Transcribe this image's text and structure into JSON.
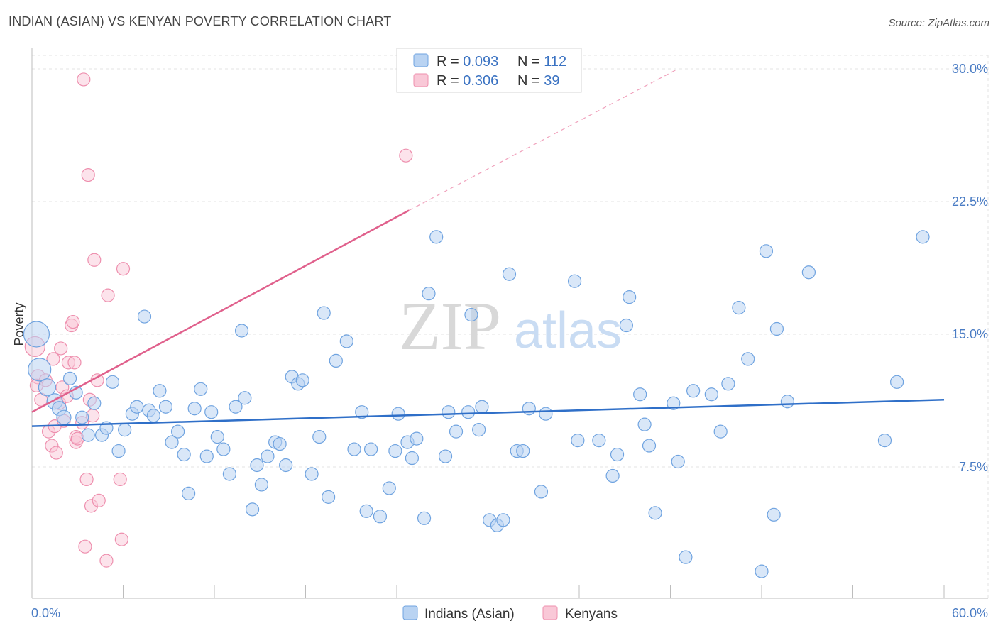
{
  "title": "INDIAN (ASIAN) VS KENYAN POVERTY CORRELATION CHART",
  "source": "Source: ZipAtlas.com",
  "watermark": {
    "zip": "ZIP",
    "atlas": "atlas"
  },
  "legend": {
    "rows": [
      {
        "r_label": "R = ",
        "r_value": "0.093",
        "n_label": "N = ",
        "n_value": "112",
        "color": "#9ec3ee"
      },
      {
        "r_label": "R = ",
        "r_value": "0.306",
        "n_label": "N = ",
        "n_value": "39",
        "color": "#f6b6c9"
      }
    ]
  },
  "chart_data": {
    "type": "scatter",
    "xlabel": "",
    "ylabel": "Poverty",
    "xlim": [
      0,
      60
    ],
    "ylim": [
      0,
      30
    ],
    "x_tick_labels": [
      "0.0%",
      "60.0%"
    ],
    "y_ticks": [
      7.5,
      15,
      22.5,
      30
    ],
    "y_tick_labels": [
      "7.5%",
      "15.0%",
      "22.5%",
      "30.0%"
    ],
    "grid": true,
    "legend_position": "bottom-center",
    "series": [
      {
        "name": "Indians (Asian)",
        "color": "#6fa3e0",
        "fill": "#b9d3f2",
        "trend": {
          "x": [
            0,
            60
          ],
          "y": [
            9.8,
            11.3
          ],
          "color": "#2f6fc8"
        },
        "points": [
          [
            0.3,
            15.0,
            18
          ],
          [
            0.5,
            13.0,
            16
          ],
          [
            1.0,
            12.0,
            12
          ],
          [
            1.5,
            11.2,
            11
          ],
          [
            1.8,
            10.8,
            10
          ],
          [
            2.1,
            10.3,
            10
          ],
          [
            2.5,
            12.5,
            9
          ],
          [
            2.9,
            11.7,
            9
          ],
          [
            3.3,
            10.3,
            9
          ],
          [
            3.7,
            9.3,
            9
          ],
          [
            4.1,
            11.1,
            9
          ],
          [
            4.6,
            9.3,
            9
          ],
          [
            4.9,
            9.7,
            9
          ],
          [
            5.3,
            12.3,
            9
          ],
          [
            5.7,
            8.4,
            9
          ],
          [
            6.1,
            9.6,
            9
          ],
          [
            6.6,
            10.5,
            9
          ],
          [
            6.9,
            10.9,
            9
          ],
          [
            7.4,
            16.0,
            9
          ],
          [
            7.7,
            10.7,
            9
          ],
          [
            8.0,
            10.4,
            9
          ],
          [
            8.4,
            11.8,
            9
          ],
          [
            8.8,
            10.9,
            9
          ],
          [
            9.2,
            8.9,
            9
          ],
          [
            9.6,
            9.5,
            9
          ],
          [
            10.0,
            8.2,
            9
          ],
          [
            10.3,
            6.0,
            9
          ],
          [
            10.7,
            10.8,
            9
          ],
          [
            11.1,
            11.9,
            9
          ],
          [
            11.5,
            8.1,
            9
          ],
          [
            11.8,
            10.6,
            9
          ],
          [
            12.2,
            9.2,
            9
          ],
          [
            12.6,
            8.5,
            9
          ],
          [
            13.0,
            7.1,
            9
          ],
          [
            13.4,
            10.9,
            9
          ],
          [
            13.8,
            15.2,
            9
          ],
          [
            14.0,
            11.4,
            9
          ],
          [
            14.5,
            5.1,
            9
          ],
          [
            14.8,
            7.6,
            9
          ],
          [
            15.1,
            6.5,
            9
          ],
          [
            15.5,
            8.1,
            9
          ],
          [
            16.0,
            8.9,
            9
          ],
          [
            16.3,
            8.8,
            9
          ],
          [
            16.7,
            7.6,
            9
          ],
          [
            17.1,
            12.6,
            9
          ],
          [
            17.5,
            12.2,
            9
          ],
          [
            17.8,
            12.4,
            9
          ],
          [
            18.4,
            7.1,
            9
          ],
          [
            18.9,
            9.2,
            9
          ],
          [
            19.2,
            16.2,
            9
          ],
          [
            19.5,
            5.8,
            9
          ],
          [
            20.0,
            13.5,
            9
          ],
          [
            20.7,
            14.6,
            9
          ],
          [
            21.2,
            8.5,
            9
          ],
          [
            21.7,
            10.6,
            9
          ],
          [
            22.0,
            5.0,
            9
          ],
          [
            22.3,
            8.5,
            9
          ],
          [
            22.9,
            4.7,
            9
          ],
          [
            23.5,
            6.3,
            9
          ],
          [
            23.9,
            8.4,
            9
          ],
          [
            24.1,
            10.5,
            9
          ],
          [
            24.7,
            8.9,
            9
          ],
          [
            25.0,
            8.0,
            9
          ],
          [
            25.3,
            9.1,
            9
          ],
          [
            25.8,
            4.6,
            9
          ],
          [
            26.1,
            17.3,
            9
          ],
          [
            26.6,
            20.5,
            9
          ],
          [
            27.2,
            8.1,
            9
          ],
          [
            27.4,
            10.6,
            9
          ],
          [
            27.9,
            9.5,
            9
          ],
          [
            28.7,
            10.6,
            9
          ],
          [
            28.9,
            16.1,
            9
          ],
          [
            29.4,
            9.6,
            9
          ],
          [
            29.6,
            10.9,
            9
          ],
          [
            30.1,
            4.5,
            9
          ],
          [
            30.6,
            4.2,
            9
          ],
          [
            31.0,
            4.5,
            9
          ],
          [
            31.4,
            18.4,
            9
          ],
          [
            31.9,
            8.4,
            9
          ],
          [
            32.3,
            8.4,
            9
          ],
          [
            32.7,
            10.8,
            9
          ],
          [
            33.5,
            6.1,
            9
          ],
          [
            33.8,
            10.5,
            9
          ],
          [
            35.7,
            18.0,
            9
          ],
          [
            35.9,
            9.0,
            9
          ],
          [
            37.3,
            9.0,
            9
          ],
          [
            38.2,
            7.0,
            9
          ],
          [
            38.5,
            8.2,
            9
          ],
          [
            39.1,
            15.5,
            9
          ],
          [
            39.3,
            17.1,
            9
          ],
          [
            40.0,
            11.6,
            9
          ],
          [
            40.3,
            9.9,
            9
          ],
          [
            40.6,
            8.7,
            9
          ],
          [
            41.0,
            4.9,
            9
          ],
          [
            42.2,
            11.1,
            9
          ],
          [
            42.5,
            7.8,
            9
          ],
          [
            43.0,
            2.4,
            9
          ],
          [
            43.5,
            11.8,
            9
          ],
          [
            44.7,
            11.6,
            9
          ],
          [
            45.3,
            9.5,
            9
          ],
          [
            45.8,
            12.2,
            9
          ],
          [
            46.5,
            16.5,
            9
          ],
          [
            47.1,
            13.6,
            9
          ],
          [
            48.0,
            1.6,
            9
          ],
          [
            48.3,
            19.7,
            9
          ],
          [
            48.8,
            4.8,
            9
          ],
          [
            49.0,
            15.3,
            9
          ],
          [
            49.7,
            11.2,
            9
          ],
          [
            51.1,
            18.5,
            9
          ],
          [
            56.1,
            9.0,
            9
          ],
          [
            56.9,
            12.3,
            9
          ],
          [
            58.6,
            20.5,
            9
          ]
        ]
      },
      {
        "name": "Kenyans",
        "color": "#ee8fae",
        "fill": "#f9c8d7",
        "trend": {
          "x": [
            0,
            24.8
          ],
          "y": [
            10.6,
            22.0
          ],
          "color": "#e0608c",
          "dash_to": [
            42.5,
            30.0
          ]
        },
        "points": [
          [
            0.2,
            14.3,
            14
          ],
          [
            0.4,
            12.6,
            10
          ],
          [
            0.6,
            11.3,
            9
          ],
          [
            0.9,
            12.4,
            9
          ],
          [
            1.1,
            9.5,
            9
          ],
          [
            1.3,
            8.7,
            9
          ],
          [
            1.4,
            13.6,
            9
          ],
          [
            1.5,
            9.8,
            9
          ],
          [
            1.6,
            8.3,
            9
          ],
          [
            1.8,
            11.1,
            9
          ],
          [
            1.9,
            14.2,
            9
          ],
          [
            2.0,
            12.0,
            9
          ],
          [
            2.1,
            10.1,
            9
          ],
          [
            2.3,
            11.5,
            9
          ],
          [
            2.4,
            13.4,
            9
          ],
          [
            2.6,
            15.5,
            9
          ],
          [
            2.7,
            15.7,
            9
          ],
          [
            2.8,
            13.4,
            9
          ],
          [
            2.9,
            8.9,
            9
          ],
          [
            2.9,
            9.2,
            9
          ],
          [
            3.0,
            9.1,
            9
          ],
          [
            3.3,
            10.0,
            9
          ],
          [
            3.4,
            29.4,
            9
          ],
          [
            3.5,
            3.0,
            9
          ],
          [
            3.6,
            6.8,
            9
          ],
          [
            3.7,
            24.0,
            9
          ],
          [
            3.8,
            11.3,
            9
          ],
          [
            3.9,
            5.3,
            9
          ],
          [
            4.0,
            10.4,
            9
          ],
          [
            4.1,
            19.2,
            9
          ],
          [
            4.3,
            12.4,
            9
          ],
          [
            4.4,
            5.6,
            9
          ],
          [
            4.9,
            2.2,
            9
          ],
          [
            5.0,
            17.2,
            9
          ],
          [
            5.8,
            6.8,
            9
          ],
          [
            5.9,
            3.4,
            9
          ],
          [
            6.0,
            18.7,
            9
          ],
          [
            24.6,
            25.1,
            9
          ],
          [
            0.3,
            12.1,
            9
          ]
        ]
      }
    ]
  }
}
